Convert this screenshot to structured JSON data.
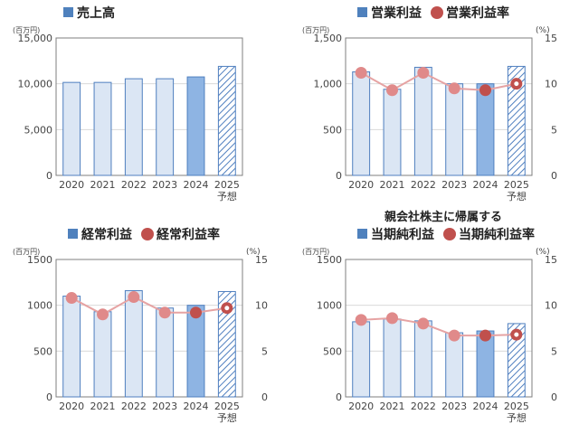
{
  "chart_data": [
    {
      "type": "bar",
      "legend": [
        {
          "label": "売上高",
          "kind": "bar"
        }
      ],
      "unit": "(百万円)",
      "categories": [
        "2020",
        "2021",
        "2022",
        "2023",
        "2024",
        "2025"
      ],
      "forecast_label": "予想",
      "ylim": [
        0,
        15000
      ],
      "yticks": [
        "0",
        "5,000",
        "10,000",
        "15,000"
      ],
      "series": [
        {
          "name": "売上高",
          "values": [
            10150,
            10150,
            10550,
            10550,
            10750,
            11900
          ]
        }
      ]
    },
    {
      "type": "bar",
      "legend": [
        {
          "label": "営業利益",
          "kind": "bar"
        },
        {
          "label": "営業利益率",
          "kind": "dot"
        }
      ],
      "unit": "(百万円)",
      "right_unit": "(%)",
      "categories": [
        "2020",
        "2021",
        "2022",
        "2023",
        "2024",
        "2025"
      ],
      "forecast_label": "予想",
      "ylim": [
        0,
        1500
      ],
      "yticks": [
        "0",
        "500",
        "1,000",
        "1,500"
      ],
      "y2lim": [
        0,
        15
      ],
      "y2ticks": [
        "0",
        "5",
        "10",
        "15"
      ],
      "series": [
        {
          "name": "営業利益",
          "type": "bar",
          "values": [
            1130,
            940,
            1180,
            1000,
            1000,
            1190
          ]
        },
        {
          "name": "営業利益率",
          "type": "line",
          "axis": "right",
          "values": [
            11.2,
            9.3,
            11.2,
            9.5,
            9.3,
            10.0
          ]
        }
      ]
    },
    {
      "type": "bar",
      "legend": [
        {
          "label": "経常利益",
          "kind": "bar"
        },
        {
          "label": "経常利益率",
          "kind": "dot"
        }
      ],
      "unit": "(百万円)",
      "right_unit": "(%)",
      "categories": [
        "2020",
        "2021",
        "2022",
        "2023",
        "2024",
        "2025"
      ],
      "forecast_label": "予想",
      "ylim": [
        0,
        1500
      ],
      "yticks": [
        "0",
        "500",
        "1000",
        "1500"
      ],
      "y2lim": [
        0,
        15
      ],
      "y2ticks": [
        "0",
        "5",
        "10",
        "15"
      ],
      "series": [
        {
          "name": "経常利益",
          "type": "bar",
          "values": [
            1100,
            930,
            1160,
            970,
            1000,
            1150
          ]
        },
        {
          "name": "経常利益率",
          "type": "line",
          "axis": "right",
          "values": [
            10.8,
            9.0,
            10.9,
            9.2,
            9.2,
            9.7
          ]
        }
      ]
    },
    {
      "type": "bar",
      "title": "親会社株主に帰属する",
      "legend": [
        {
          "label": "当期純利益",
          "kind": "bar"
        },
        {
          "label": "当期純利益率",
          "kind": "dot"
        }
      ],
      "unit": "(百万円)",
      "right_unit": "(%)",
      "categories": [
        "2020",
        "2021",
        "2022",
        "2023",
        "2024",
        "2025"
      ],
      "forecast_label": "予想",
      "ylim": [
        0,
        1500
      ],
      "yticks": [
        "0",
        "500",
        "1000",
        "1500"
      ],
      "y2lim": [
        0,
        15
      ],
      "y2ticks": [
        "0",
        "5",
        "10",
        "15"
      ],
      "series": [
        {
          "name": "当期純利益",
          "type": "bar",
          "values": [
            820,
            850,
            830,
            700,
            720,
            800
          ]
        },
        {
          "name": "当期純利益率",
          "type": "line",
          "axis": "right",
          "values": [
            8.4,
            8.6,
            8.0,
            6.7,
            6.7,
            6.8
          ]
        }
      ]
    }
  ],
  "colors": {
    "bar_fill": "#dbe6f4",
    "bar_stroke": "#4f7fbf",
    "bar_current": "#8eb4e3",
    "legend_square": "#4f81bd",
    "dot": "#c0504d",
    "line": "#e6a3a3",
    "grid": "#d9d9d9",
    "axis": "#7f7f7f"
  }
}
